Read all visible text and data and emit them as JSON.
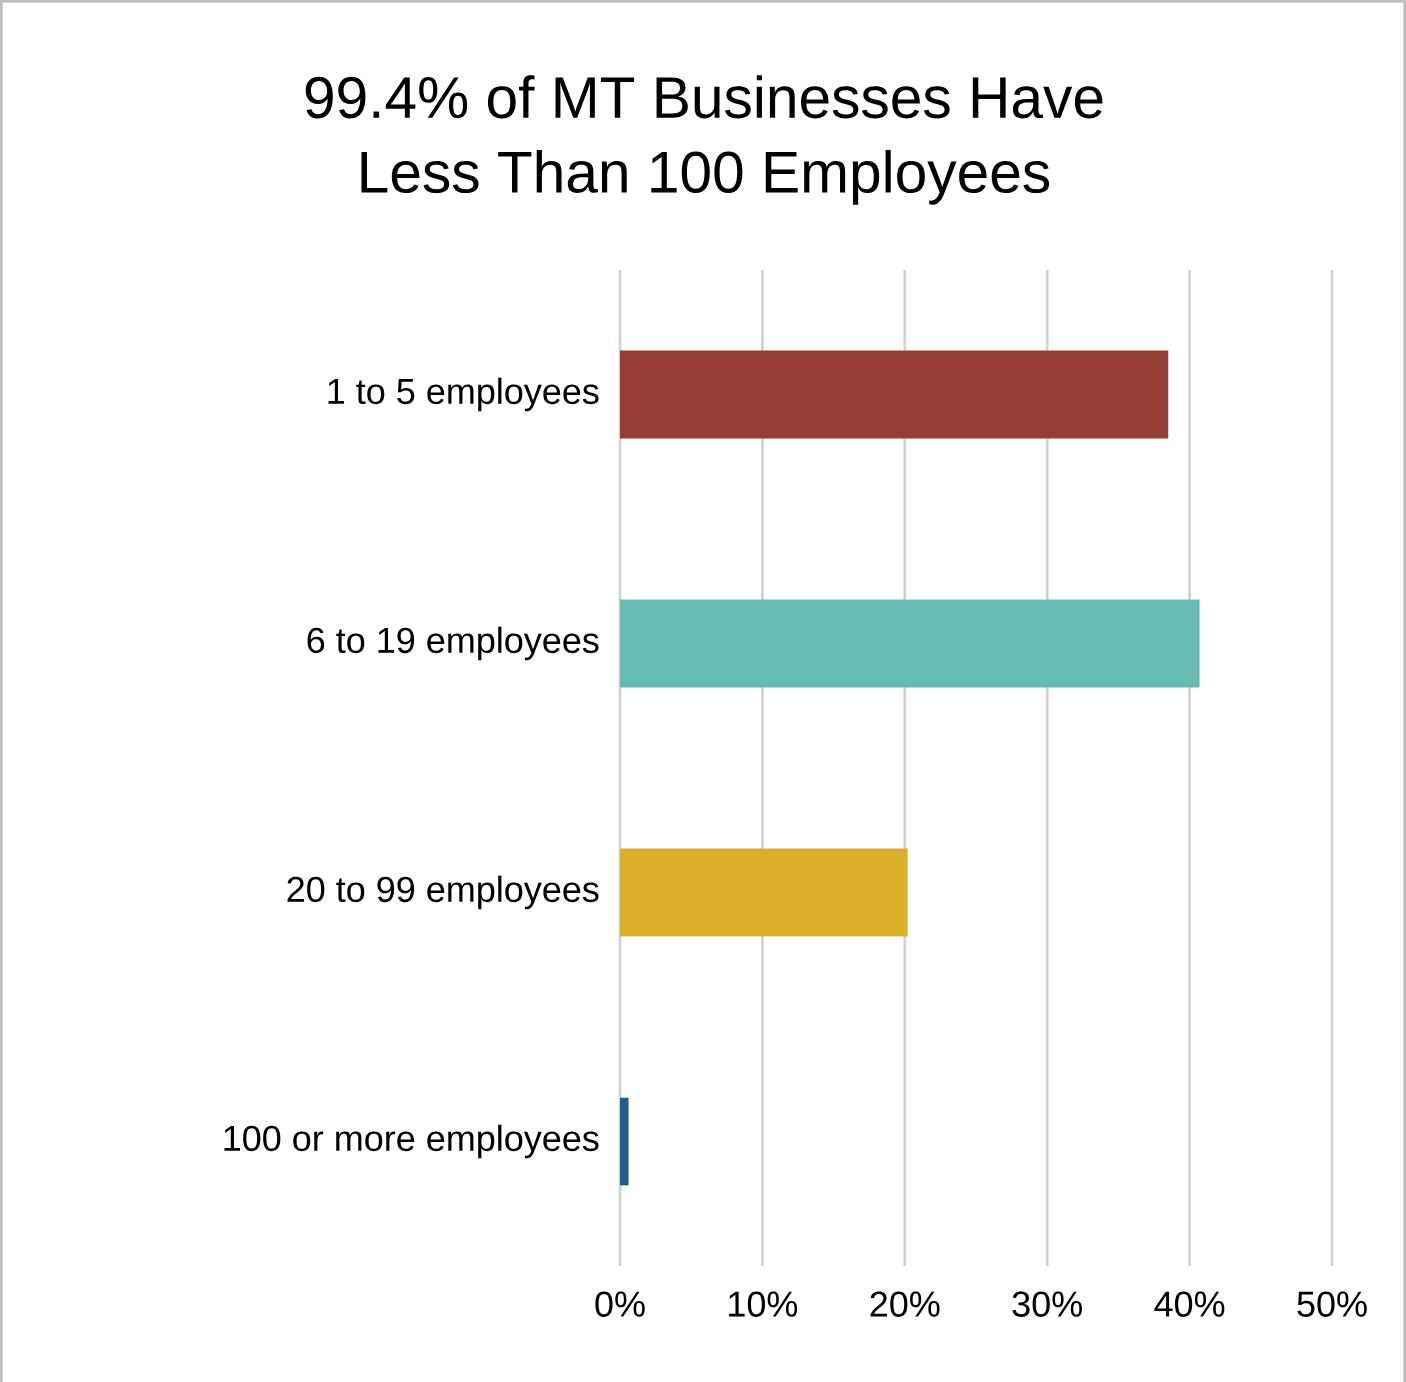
{
  "chart_data": {
    "type": "bar",
    "orientation": "horizontal",
    "title": "99.4% of MT Businesses Have\nLess Than 100 Employees",
    "categories": [
      "1 to 5 employees",
      "6 to 19 employees",
      "20 to 99 employees",
      "100 or more employees"
    ],
    "values": [
      38.5,
      40.7,
      20.2,
      0.6
    ],
    "colors": [
      "#943e35",
      "#66bcb1",
      "#dbae2a",
      "#1f5f8b"
    ],
    "xlim": [
      0,
      50
    ],
    "xticks": [
      {
        "value": 0,
        "label": "0%"
      },
      {
        "value": 10,
        "label": "10%"
      },
      {
        "value": 20,
        "label": "20%"
      },
      {
        "value": 30,
        "label": "30%"
      },
      {
        "value": 40,
        "label": "40%"
      },
      {
        "value": 50,
        "label": "50%"
      }
    ],
    "grid": "x"
  }
}
